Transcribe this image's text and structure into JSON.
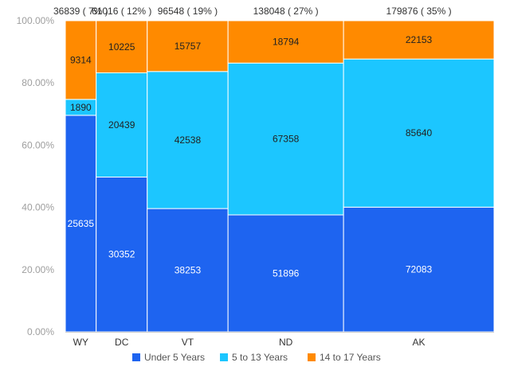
{
  "chart_data": {
    "type": "bar",
    "subtype": "marimekko",
    "categories": [
      "WY",
      "DC",
      "VT",
      "ND",
      "AK"
    ],
    "totals": [
      36839,
      61016,
      96548,
      138048,
      179876
    ],
    "total_labels": [
      "36839 ( 7% )",
      "61016 ( 12% )",
      "96548 ( 19% )",
      "138048 ( 27% )",
      "179876 ( 35% )"
    ],
    "series": [
      {
        "name": "Under 5 Years",
        "color": "#1e64f0",
        "label_color": "#ffffff",
        "values": [
          25635,
          30352,
          38253,
          51896,
          72083
        ]
      },
      {
        "name": "5 to 13 Years",
        "color": "#1cc6ff",
        "label_color": "#222222",
        "values": [
          1890,
          20439,
          42538,
          67358,
          85640
        ]
      },
      {
        "name": "14 to 17 Years",
        "color": "#ff8a00",
        "label_color": "#222222",
        "values": [
          9314,
          10225,
          15757,
          18794,
          22153
        ]
      }
    ],
    "y_ticks": [
      "0.00%",
      "20.00%",
      "40.00%",
      "60.00%",
      "80.00%",
      "100.00%"
    ],
    "ylim": [
      0,
      1
    ],
    "legend_position": "bottom",
    "grid": false
  }
}
